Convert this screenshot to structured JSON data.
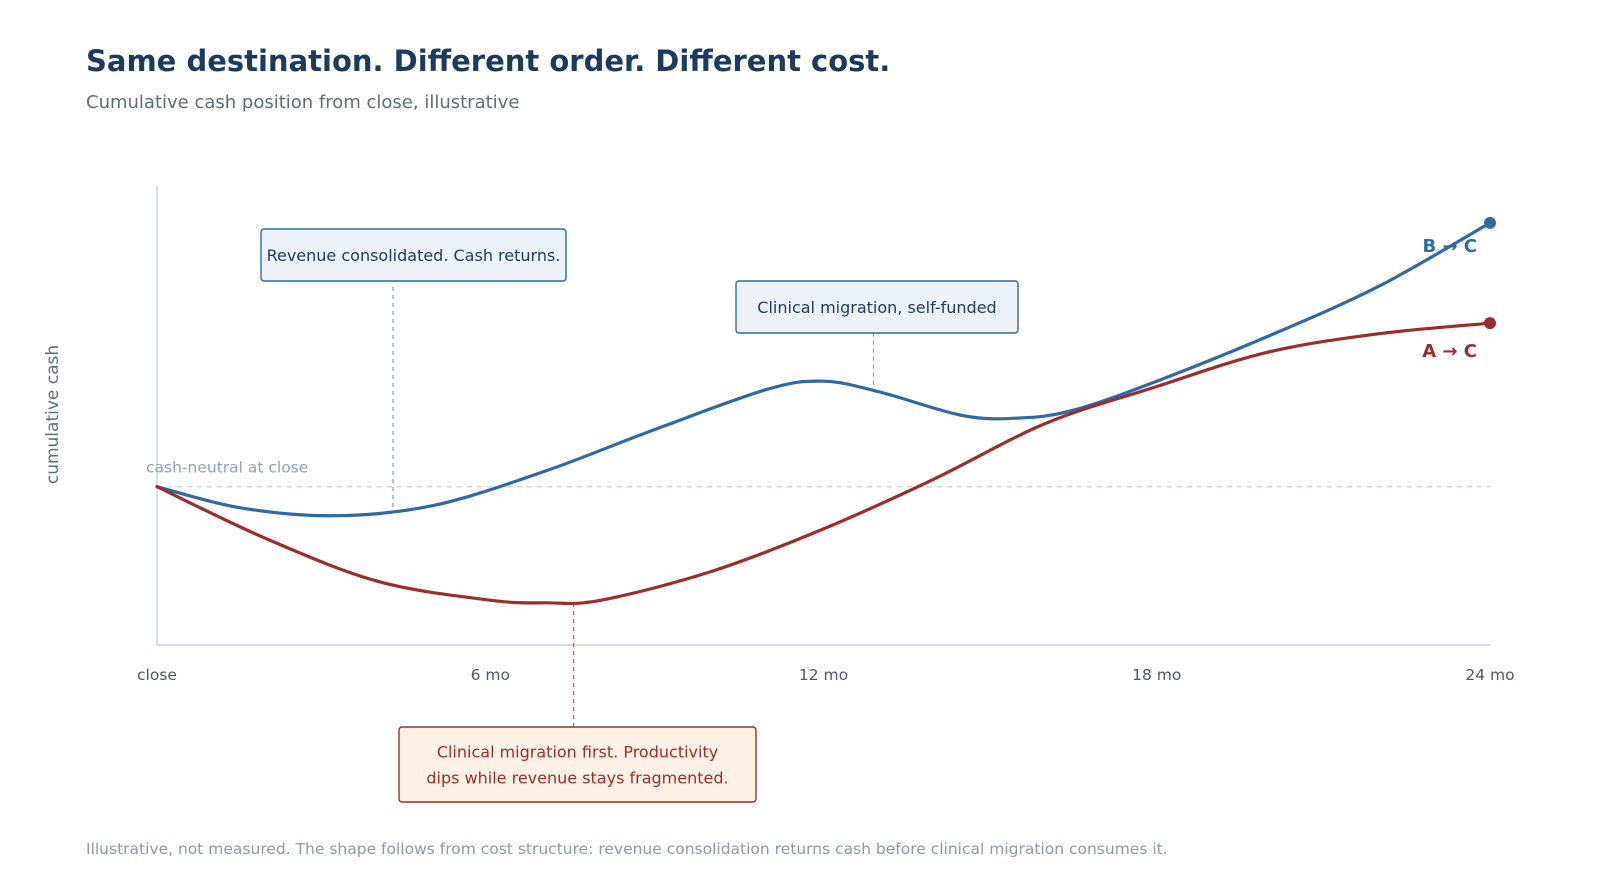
{
  "header": {
    "title": "Same destination. Different order. Different cost.",
    "subtitle": "Cumulative cash position from close, illustrative"
  },
  "footnote": "Illustrative, not measured. The shape follows from cost structure: revenue consolidation returns cash before clinical migration consumes it.",
  "colors": {
    "series_b_to_c": "#2e6aa3",
    "series_a_to_c": "#9b2d2d",
    "axis": "#c5d3e4",
    "reference_line": "#c5d3e4",
    "blue_annotation_fill": "#edf2f9",
    "red_annotation_fill": "#fdf1e6"
  },
  "chart_data": {
    "type": "line",
    "title": "Same destination. Different order. Different cost.",
    "subtitle": "Cumulative cash position from close, illustrative",
    "xlabel": "",
    "ylabel": "cumulative cash",
    "xlim": [
      0,
      24
    ],
    "ylim": [
      -30,
      57
    ],
    "x_ticks": [
      {
        "value": 0,
        "label": "close"
      },
      {
        "value": 6,
        "label": "6 mo"
      },
      {
        "value": 12,
        "label": "12 mo"
      },
      {
        "value": 18,
        "label": "18 mo"
      },
      {
        "value": 24,
        "label": "24 mo"
      }
    ],
    "grid": false,
    "legend": "none; series labelled at line ends",
    "reference_line": {
      "y": 0,
      "label": "cash-neutral at close"
    },
    "series": [
      {
        "name": "B → C",
        "color_key": "series_b_to_c",
        "x": [
          0,
          1.5,
          3.2,
          5,
          7,
          9,
          11,
          12,
          13,
          14.5,
          15.5,
          16.5,
          18,
          20,
          22,
          24
        ],
        "y": [
          0,
          -4,
          -5.5,
          -3.5,
          3,
          11,
          18.5,
          20,
          18,
          13.5,
          13,
          14.5,
          20,
          28.5,
          38,
          50
        ]
      },
      {
        "name": "A → C",
        "color_key": "series_a_to_c",
        "x": [
          0,
          2,
          4,
          6,
          7,
          8,
          10,
          12,
          14,
          16,
          18,
          20,
          22,
          24
        ],
        "y": [
          0,
          -10,
          -18,
          -21.5,
          -22,
          -21.5,
          -16,
          -8,
          1.5,
          12,
          19,
          25.5,
          29,
          31
        ]
      }
    ],
    "annotations": [
      {
        "text": "Revenue consolidated. Cash returns.",
        "series": "B → C",
        "x": 4.25,
        "style": "blue"
      },
      {
        "text": "Clinical migration, self-funded",
        "series": "B → C",
        "x": 12.9,
        "style": "blue"
      },
      {
        "text_lines": [
          "Clinical migration first. Productivity",
          "dips while revenue stays fragmented."
        ],
        "series": "A → C",
        "x": 7.5,
        "style": "red"
      }
    ]
  }
}
